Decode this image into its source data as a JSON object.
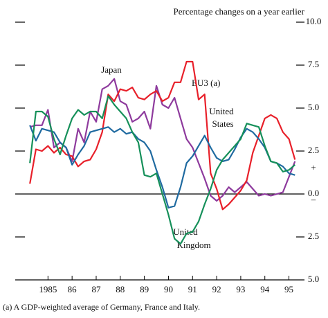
{
  "chart_data": {
    "type": "line",
    "subtitle": "Percentage changes on a year earlier",
    "x": [
      1984.75,
      1985,
      1985.25,
      1985.5,
      1985.75,
      1986,
      1986.25,
      1986.5,
      1986.75,
      1987,
      1987.25,
      1987.5,
      1987.75,
      1988,
      1988.25,
      1988.5,
      1988.75,
      1989,
      1989.25,
      1989.5,
      1989.75,
      1990,
      1990.25,
      1990.5,
      1990.75,
      1991,
      1991.25,
      1991.5,
      1991.75,
      1992,
      1992.25,
      1992.5,
      1992.75,
      1993,
      1993.25,
      1993.5,
      1993.75,
      1994,
      1994.25,
      1994.5,
      1994.75,
      1995,
      1995.25,
      1995.5,
      1995.75
    ],
    "xlim": [
      1984.6,
      1995.8
    ],
    "xticks": [
      {
        "value": 1985.5,
        "label": "1985"
      },
      {
        "value": 1986.5,
        "label": "86"
      },
      {
        "value": 1987.5,
        "label": "87"
      },
      {
        "value": 1988.5,
        "label": "88"
      },
      {
        "value": 1989.5,
        "label": "89"
      },
      {
        "value": 1990.5,
        "label": "90"
      },
      {
        "value": 1991.5,
        "label": "91"
      },
      {
        "value": 1992.5,
        "label": "92"
      },
      {
        "value": 1993.5,
        "label": "93"
      },
      {
        "value": 1994.5,
        "label": "94"
      },
      {
        "value": 1995.5,
        "label": "95"
      }
    ],
    "ylim": [
      -5,
      10
    ],
    "yticks": [
      {
        "value": 10,
        "label": "10.0"
      },
      {
        "value": 7.5,
        "label": "7.5"
      },
      {
        "value": 5,
        "label": "5.0"
      },
      {
        "value": 2.5,
        "label": "2.5"
      },
      {
        "value": 0,
        "label": "0.0"
      },
      {
        "value": -2.5,
        "label": "2.5"
      },
      {
        "value": -5,
        "label": "5.0"
      }
    ],
    "sign_labels": [
      "+",
      "–"
    ],
    "series": [
      {
        "name": "Japan",
        "color": "#8e3a9d",
        "values": [
          3.9,
          4.0,
          4.0,
          4.9,
          2.7,
          3.0,
          2.7,
          1.9,
          3.8,
          3.0,
          4.8,
          4.2,
          6.1,
          6.3,
          6.7,
          5.4,
          5.2,
          4.2,
          4.4,
          4.8,
          3.8,
          6.3,
          5.2,
          5.0,
          5.6,
          4.4,
          3.2,
          2.7,
          1.8,
          0.9,
          -0.1,
          -0.4,
          -0.1,
          0.4,
          0.1,
          0.4,
          0.7,
          0.3,
          -0.1,
          0,
          -0.1,
          0,
          0.1,
          1.0,
          1.9
        ]
      },
      {
        "name": "EU3 (a)",
        "color": "#e8202a",
        "values": [
          0.6,
          2.6,
          2.5,
          2.8,
          2.4,
          2.7,
          2.3,
          2.2,
          1.6,
          1.9,
          2.0,
          2.6,
          3.6,
          5.8,
          5.4,
          6.1,
          6.0,
          6.2,
          5.6,
          5.5,
          5.8,
          6.0,
          5.4,
          5.6,
          6.5,
          6.5,
          7.7,
          7.7,
          5.5,
          5.8,
          1.2,
          0.3,
          -0.9,
          -0.6,
          -0.2,
          0.2,
          0.8,
          2.4,
          3.4,
          4.4,
          4.6,
          4.4,
          3.6,
          3.2,
          2.0
        ]
      },
      {
        "name": "United States",
        "color": "#1f6aa0",
        "values": [
          4.0,
          3.1,
          3.8,
          3.7,
          3.6,
          3.0,
          2.7,
          1.7,
          2.3,
          2.8,
          3.6,
          3.7,
          3.8,
          3.9,
          3.6,
          3.8,
          3.5,
          3.6,
          3.2,
          3.0,
          2.5,
          1.4,
          0.4,
          -0.8,
          -0.7,
          0.4,
          1.8,
          2.2,
          2.8,
          3.4,
          2.7,
          2.1,
          1.9,
          2.0,
          2.6,
          3.3,
          3.8,
          3.6,
          3.2,
          2.7,
          1.9,
          1.8,
          1.6,
          1.2,
          1.1
        ]
      },
      {
        "name": "United Kingdom",
        "color": "#16905a",
        "values": [
          1.8,
          4.8,
          4.8,
          4.5,
          3.2,
          2.3,
          3.4,
          4.4,
          4.9,
          4.6,
          4.8,
          4.8,
          4.4,
          5.7,
          5.2,
          4.8,
          4.4,
          3.6,
          3.0,
          1.1,
          1.0,
          1.2,
          0,
          -1.2,
          -2.6,
          -2.9,
          -2.3,
          -2.2,
          -1.6,
          -0.6,
          0.3,
          1.4,
          2.0,
          2.4,
          2.8,
          3.2,
          4.1,
          4.0,
          3.9,
          2.8,
          1.9,
          1.8,
          1.3,
          1.4,
          1.7
        ]
      }
    ],
    "annotations": [
      "Japan",
      "EU3 (a)",
      "United",
      "States",
      "United",
      "Kingdom"
    ],
    "footnote": "(a) A GDP-weighted average of Germany, France and Italy."
  }
}
